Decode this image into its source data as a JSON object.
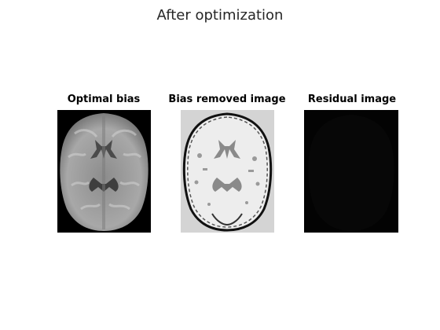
{
  "figure": {
    "title": "After optimization"
  },
  "panels": [
    {
      "title": "Optimal bias",
      "image": "grayscale axial brain MRI with estimated bias field"
    },
    {
      "title": "Bias removed image",
      "image": "binarized light-gray brain slice with dark outline"
    },
    {
      "title": "Residual image",
      "image": "nearly black residual map"
    }
  ],
  "colors": {
    "title_text": "#262626",
    "panel_text": "#000000",
    "bias_background": "#000000",
    "removed_background": "#d4d4d4",
    "residual_background": "#030303"
  }
}
